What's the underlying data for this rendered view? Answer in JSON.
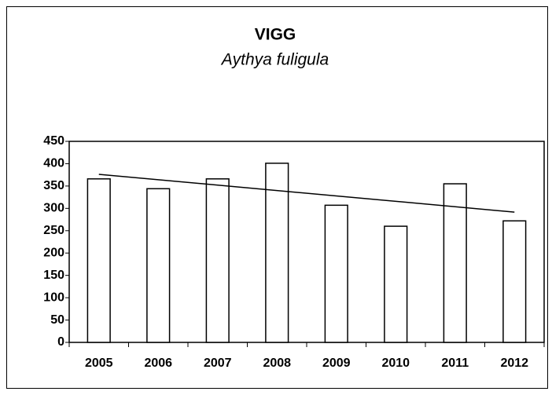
{
  "chart_data": {
    "type": "bar",
    "title": "VIGG",
    "subtitle": "Aythya fuligula",
    "categories": [
      "2005",
      "2006",
      "2007",
      "2008",
      "2009",
      "2010",
      "2011",
      "2012"
    ],
    "values": [
      366,
      344,
      366,
      401,
      307,
      260,
      355,
      272
    ],
    "color": "#ffffff",
    "trendline": "linear",
    "ylim": [
      0,
      450
    ],
    "yticks": [
      0,
      50,
      100,
      150,
      200,
      250,
      300,
      350,
      400,
      450
    ],
    "grid": false
  }
}
